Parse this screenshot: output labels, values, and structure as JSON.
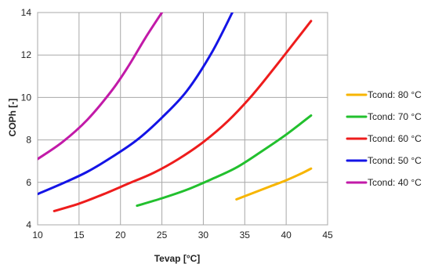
{
  "chart_data": {
    "type": "line",
    "title": "",
    "xlabel": "Tevap [°C]",
    "ylabel": "COPh [-]",
    "xlim": [
      10,
      45
    ],
    "ylim": [
      4,
      14
    ],
    "xticks": [
      10,
      15,
      20,
      25,
      30,
      35,
      40,
      45
    ],
    "yticks": [
      4,
      6,
      8,
      10,
      12,
      14
    ],
    "grid": true,
    "legend_position": "right",
    "series": [
      {
        "name": "Tcond: 80 °C",
        "color": "#F7B500",
        "x": [
          34,
          36,
          38,
          40,
          42,
          43
        ],
        "y": [
          5.2,
          5.5,
          5.8,
          6.1,
          6.45,
          6.65
        ]
      },
      {
        "name": "Tcond: 70 °C",
        "color": "#22C02E",
        "x": [
          22,
          25,
          28,
          31,
          34,
          37,
          40,
          43
        ],
        "y": [
          4.9,
          5.25,
          5.65,
          6.15,
          6.7,
          7.45,
          8.25,
          9.15
        ]
      },
      {
        "name": "Tcond: 60 °C",
        "color": "#EE1C1C",
        "x": [
          12,
          15,
          18,
          21,
          24,
          27,
          30,
          33,
          36,
          39,
          42,
          43
        ],
        "y": [
          4.65,
          5.0,
          5.45,
          5.95,
          6.45,
          7.1,
          7.9,
          8.9,
          10.15,
          11.6,
          13.1,
          13.6
        ]
      },
      {
        "name": "Tcond: 50 °C",
        "color": "#1414E6",
        "x": [
          10,
          13,
          16,
          19,
          22,
          25,
          28,
          31,
          33.5
        ],
        "y": [
          5.45,
          5.95,
          6.5,
          7.2,
          8.0,
          9.05,
          10.3,
          12.1,
          14.0
        ]
      },
      {
        "name": "Tcond: 40 °C",
        "color": "#C21AA8",
        "x": [
          10,
          13,
          16,
          19,
          21,
          23,
          25
        ],
        "y": [
          7.1,
          7.9,
          8.95,
          10.35,
          11.5,
          12.8,
          14.0
        ]
      }
    ],
    "legend_order": [
      0,
      1,
      2,
      3,
      4
    ]
  }
}
